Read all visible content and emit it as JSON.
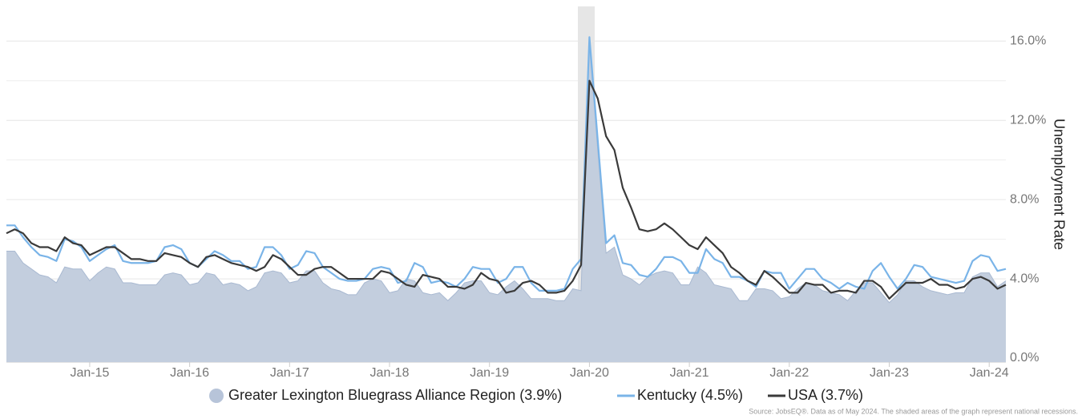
{
  "chart_data": {
    "type": "line",
    "y_label": "Unemployment Rate",
    "source": "Source: JobsEQ®. Data as of May 2024. The shaded areas of the graph represent national recessions.",
    "categories": [
      null,
      null,
      null,
      null,
      null,
      null,
      null,
      null,
      null,
      null,
      "Jan-15",
      null,
      null,
      null,
      null,
      null,
      null,
      null,
      null,
      null,
      null,
      null,
      "Jan-16",
      null,
      null,
      null,
      null,
      null,
      null,
      null,
      null,
      null,
      null,
      null,
      "Jan-17",
      null,
      null,
      null,
      null,
      null,
      null,
      null,
      null,
      null,
      null,
      null,
      "Jan-18",
      null,
      null,
      null,
      null,
      null,
      null,
      null,
      null,
      null,
      null,
      null,
      "Jan-19",
      null,
      null,
      null,
      null,
      null,
      null,
      null,
      null,
      null,
      null,
      null,
      "Jan-20",
      null,
      null,
      null,
      null,
      null,
      null,
      null,
      null,
      null,
      null,
      null,
      "Jan-21",
      null,
      null,
      null,
      null,
      null,
      null,
      null,
      null,
      null,
      null,
      null,
      "Jan-22",
      null,
      null,
      null,
      null,
      null,
      null,
      null,
      null,
      null,
      null,
      null,
      "Jan-23",
      null,
      null,
      null,
      null,
      null,
      null,
      null,
      null,
      null,
      null,
      null,
      "Jan-24",
      null,
      null
    ],
    "series": [
      {
        "name": "Greater Lexington Bluegrass Alliance Region (3.9%)",
        "style": "area",
        "color": "#c3cede",
        "edge": "#a9b9d1",
        "marker": "#b7c4d9",
        "values": [
          5.4,
          5.4,
          4.8,
          4.5,
          4.2,
          4.1,
          3.8,
          4.6,
          4.5,
          4.5,
          3.9,
          4.3,
          4.6,
          4.5,
          3.8,
          3.8,
          3.7,
          3.7,
          3.7,
          4.2,
          4.3,
          4.2,
          3.7,
          3.8,
          4.3,
          4.2,
          3.7,
          3.8,
          3.7,
          3.4,
          3.6,
          4.3,
          4.4,
          4.3,
          3.8,
          3.9,
          4.4,
          4.4,
          3.8,
          3.5,
          3.4,
          3.2,
          3.2,
          3.8,
          4.0,
          3.9,
          3.3,
          3.4,
          4.0,
          3.9,
          3.3,
          3.2,
          3.3,
          2.9,
          3.3,
          3.8,
          3.9,
          3.9,
          3.3,
          3.2,
          3.6,
          3.9,
          3.5,
          3.0,
          3.0,
          3.0,
          2.9,
          2.9,
          3.5,
          3.4,
          15.8,
          10.5,
          5.3,
          5.6,
          4.2,
          4.0,
          3.7,
          4.1,
          4.3,
          4.4,
          4.3,
          3.7,
          3.7,
          4.6,
          4.3,
          3.7,
          3.6,
          3.5,
          2.9,
          2.9,
          3.5,
          3.5,
          3.4,
          3.0,
          3.1,
          3.5,
          3.8,
          3.7,
          3.4,
          3.3,
          3.2,
          2.9,
          3.4,
          3.8,
          3.8,
          3.3,
          2.8,
          3.2,
          3.9,
          3.9,
          3.6,
          3.4,
          3.3,
          3.2,
          3.3,
          3.3,
          4.1,
          4.3,
          4.3,
          3.6,
          3.9
        ]
      },
      {
        "name": "Kentucky (4.5%)",
        "style": "line",
        "color": "#7ab4e8",
        "values": [
          6.7,
          6.7,
          6.1,
          5.6,
          5.2,
          5.1,
          4.9,
          6.0,
          5.9,
          5.6,
          4.9,
          5.2,
          5.5,
          5.7,
          4.9,
          4.8,
          4.8,
          4.8,
          4.9,
          5.6,
          5.7,
          5.5,
          4.8,
          4.6,
          5.0,
          5.4,
          5.2,
          4.9,
          4.9,
          4.5,
          4.6,
          5.6,
          5.6,
          5.2,
          4.5,
          4.7,
          5.4,
          5.3,
          4.6,
          4.3,
          4.0,
          3.9,
          3.9,
          4.0,
          4.5,
          4.6,
          4.5,
          3.8,
          3.9,
          4.8,
          4.6,
          3.8,
          3.9,
          3.8,
          3.6,
          4.0,
          4.6,
          4.5,
          4.5,
          3.8,
          4.0,
          4.6,
          4.6,
          3.8,
          3.4,
          3.4,
          3.4,
          3.5,
          4.5,
          5.0,
          16.2,
          11.0,
          5.8,
          6.2,
          4.8,
          4.7,
          4.2,
          4.1,
          4.5,
          5.1,
          5.1,
          4.9,
          4.3,
          4.3,
          5.5,
          5.0,
          4.8,
          4.1,
          4.1,
          3.9,
          3.6,
          4.4,
          4.3,
          4.3,
          3.5,
          4.0,
          4.5,
          4.5,
          4.0,
          3.8,
          3.5,
          3.8,
          3.6,
          3.5,
          4.4,
          4.8,
          4.1,
          3.5,
          4.0,
          4.7,
          4.6,
          4.1,
          4.0,
          3.9,
          3.8,
          3.9,
          4.9,
          5.2,
          5.1,
          4.4,
          4.5
        ]
      },
      {
        "name": "USA (3.7%)",
        "style": "line",
        "color": "#3a3a3a",
        "values": [
          6.3,
          6.5,
          6.3,
          5.8,
          5.6,
          5.6,
          5.4,
          6.1,
          5.8,
          5.7,
          5.2,
          5.4,
          5.6,
          5.6,
          5.3,
          5.0,
          5.0,
          4.9,
          4.9,
          5.3,
          5.2,
          5.1,
          4.8,
          4.6,
          5.1,
          5.2,
          5.0,
          4.8,
          4.7,
          4.6,
          4.4,
          4.6,
          5.2,
          5.0,
          4.6,
          4.2,
          4.2,
          4.5,
          4.6,
          4.6,
          4.3,
          4.0,
          4.0,
          4.0,
          4.0,
          4.4,
          4.3,
          4.0,
          3.7,
          3.6,
          4.2,
          4.1,
          4.0,
          3.6,
          3.6,
          3.5,
          3.7,
          4.3,
          4.0,
          3.9,
          3.3,
          3.4,
          3.8,
          3.9,
          3.7,
          3.3,
          3.3,
          3.4,
          3.9,
          4.7,
          14.0,
          13.1,
          11.2,
          10.5,
          8.6,
          7.6,
          6.5,
          6.4,
          6.5,
          6.8,
          6.5,
          6.1,
          5.7,
          5.5,
          6.1,
          5.7,
          5.3,
          4.6,
          4.3,
          3.9,
          3.7,
          4.4,
          4.1,
          3.7,
          3.3,
          3.3,
          3.8,
          3.7,
          3.7,
          3.3,
          3.4,
          3.4,
          3.3,
          3.9,
          3.9,
          3.6,
          3.0,
          3.4,
          3.8,
          3.8,
          3.8,
          4.0,
          3.7,
          3.7,
          3.5,
          3.6,
          4.0,
          4.1,
          3.9,
          3.5,
          3.7
        ]
      }
    ],
    "ylim": [
      0,
      17.75
    ],
    "yticks": [
      {
        "value": 0,
        "label": "0.0%"
      },
      {
        "value": 4,
        "label": "4.0%"
      },
      {
        "value": 8,
        "label": "8.0%"
      },
      {
        "value": 12,
        "label": "12.0%"
      },
      {
        "value": 16,
        "label": "16.0%"
      }
    ],
    "minor_grid": [
      2,
      6,
      10,
      14
    ],
    "grid": true
  }
}
